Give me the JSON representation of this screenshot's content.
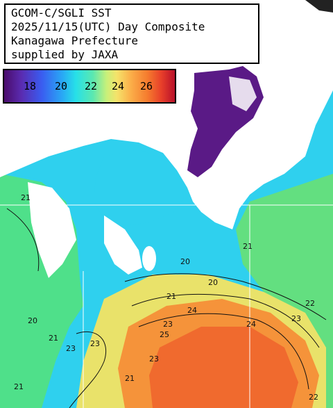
{
  "title": {
    "line1": "GCOM-C/SGLI SST",
    "line2": "2025/11/15(UTC) Day Composite",
    "line3": "Kanagawa Prefecture",
    "line4": "supplied by JAXA"
  },
  "legend": {
    "unit_ticks": [
      "18",
      "20",
      "22",
      "24",
      "26"
    ]
  },
  "contour_labels": [
    "21",
    "20",
    "21",
    "21",
    "20",
    "22",
    "23",
    "24",
    "24",
    "23",
    "23",
    "25",
    "23",
    "21",
    "23",
    "21",
    "20",
    "21",
    "22"
  ],
  "colors": {
    "land": "#ffffff",
    "cold": "#4a0c6b",
    "cyan": "#27d8ee",
    "green": "#6de07a",
    "yellow": "#f0d86a",
    "orange": "#f57b2e",
    "red": "#e8402a"
  }
}
